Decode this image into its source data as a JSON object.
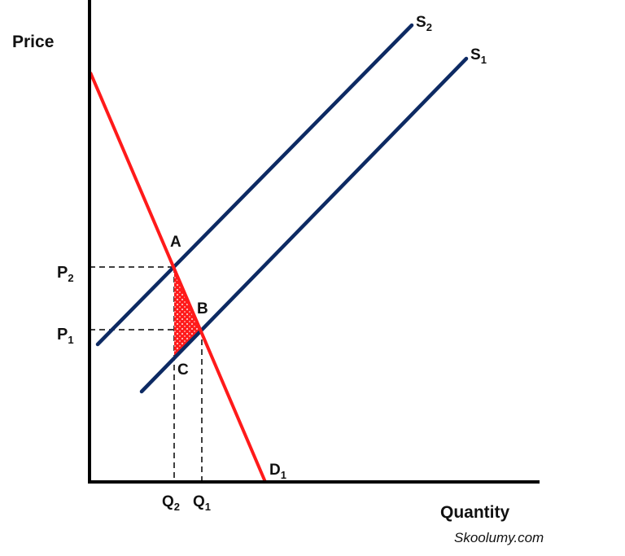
{
  "axes": {
    "y_label": "Price",
    "x_label": "Quantity"
  },
  "curves": {
    "supply_2": {
      "base": "S",
      "sub": "2"
    },
    "supply_1": {
      "base": "S",
      "sub": "1"
    },
    "demand_1": {
      "base": "D",
      "sub": "1"
    }
  },
  "points": {
    "a": "A",
    "b": "B",
    "c": "C"
  },
  "price_levels": {
    "p2": {
      "base": "P",
      "sub": "2"
    },
    "p1": {
      "base": "P",
      "sub": "1"
    }
  },
  "quantity_levels": {
    "q2": {
      "base": "Q",
      "sub": "2"
    },
    "q1": {
      "base": "Q",
      "sub": "1"
    }
  },
  "watermark": "Skoolumy.com",
  "colors": {
    "supply": "#0d2a63",
    "demand": "#ff1a1a",
    "axis": "#000000",
    "deadweight_loss": "#ff1a1a"
  }
}
